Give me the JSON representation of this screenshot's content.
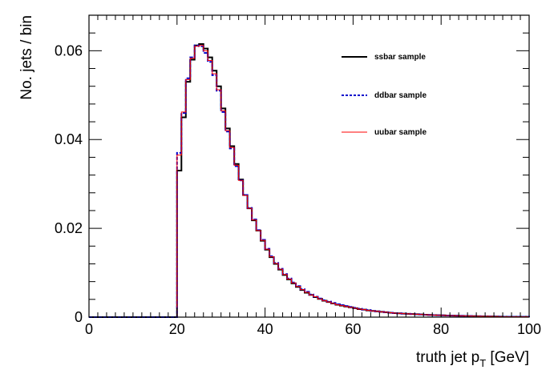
{
  "chart_data": {
    "type": "line",
    "title": "",
    "xlabel": "truth jet p",
    "xlabel_sub": "T",
    "xlabel_unit": " [GeV]",
    "ylabel": "No. jets / bin",
    "xlim": [
      0,
      100
    ],
    "ylim": [
      0,
      0.068
    ],
    "x_ticks": [
      0,
      20,
      40,
      60,
      80,
      100
    ],
    "x_tick_labels": [
      "0",
      "20",
      "40",
      "60",
      "80",
      "100"
    ],
    "y_ticks": [
      0,
      0.02,
      0.04,
      0.06
    ],
    "y_tick_labels": [
      "0",
      "0.02",
      "0.04",
      "0.06"
    ],
    "grid": false,
    "legend_position": "top-right",
    "bin_width": 1,
    "bin_edges_start": 20,
    "series": [
      {
        "name": "ssbar sample",
        "color": "#000000",
        "style": "solid",
        "values": [
          0.033,
          0.045,
          0.053,
          0.058,
          0.0612,
          0.0615,
          0.0605,
          0.0585,
          0.0555,
          0.052,
          0.047,
          0.0425,
          0.0385,
          0.0345,
          0.031,
          0.0275,
          0.0245,
          0.0218,
          0.0195,
          0.0172,
          0.0152,
          0.0135,
          0.012,
          0.0107,
          0.0095,
          0.0085,
          0.0076,
          0.0068,
          0.0061,
          0.0055,
          0.005,
          0.0045,
          0.0041,
          0.0037,
          0.0034,
          0.0031,
          0.0028,
          0.0026,
          0.0024,
          0.0022,
          0.002,
          0.0018,
          0.0017,
          0.0015,
          0.0014,
          0.0013,
          0.0012,
          0.0011,
          0.001,
          0.0009,
          0.00085,
          0.0008,
          0.00075,
          0.0007,
          0.00065,
          0.0006,
          0.00055,
          0.0005,
          0.00046,
          0.00043,
          0.0004,
          0.00037,
          0.00034,
          0.00031,
          0.00029,
          0.00027,
          0.00025,
          0.00023,
          0.00021,
          0.00019,
          0.00017,
          0.00015,
          0.00013,
          0.00011,
          0.0001,
          0.0001,
          0.0001,
          0.0001,
          0.0001,
          0.0001
        ]
      },
      {
        "name": "ddbar sample",
        "color": "#0000cc",
        "style": "dashed",
        "values": [
          0.037,
          0.046,
          0.0538,
          0.0585,
          0.0612,
          0.061,
          0.0595,
          0.0575,
          0.0545,
          0.051,
          0.0462,
          0.0418,
          0.038,
          0.034,
          0.0308,
          0.0275,
          0.0246,
          0.022,
          0.0196,
          0.0174,
          0.0154,
          0.0137,
          0.0122,
          0.0109,
          0.0097,
          0.0087,
          0.0078,
          0.007,
          0.0063,
          0.0057,
          0.0051,
          0.0046,
          0.0042,
          0.0038,
          0.0035,
          0.0032,
          0.0029,
          0.0027,
          0.0025,
          0.0023,
          0.0021,
          0.0019,
          0.0017,
          0.0016,
          0.0014,
          0.0013,
          0.0012,
          0.0011,
          0.001,
          0.0009,
          0.00085,
          0.0008,
          0.00075,
          0.0007,
          0.00065,
          0.0006,
          0.00055,
          0.0005,
          0.00046,
          0.00043,
          0.0004,
          0.00037,
          0.00034,
          0.00031,
          0.00029,
          0.00027,
          0.00025,
          0.00023,
          0.00021,
          0.00019,
          0.00017,
          0.00015,
          0.00013,
          0.00011,
          0.0001,
          0.0001,
          0.0001,
          0.0001,
          0.0001,
          0.0001
        ]
      },
      {
        "name": "uubar sample",
        "color": "#ff0000",
        "style": "solid",
        "values": [
          0.0365,
          0.0462,
          0.0535,
          0.0583,
          0.061,
          0.0612,
          0.06,
          0.0578,
          0.0548,
          0.0512,
          0.0465,
          0.042,
          0.0382,
          0.0342,
          0.0308,
          0.0274,
          0.0245,
          0.0219,
          0.0195,
          0.0173,
          0.0153,
          0.0136,
          0.0121,
          0.0108,
          0.0096,
          0.0086,
          0.0077,
          0.0069,
          0.0062,
          0.0056,
          0.005,
          0.0046,
          0.0041,
          0.0037,
          0.0034,
          0.0031,
          0.0028,
          0.0026,
          0.0024,
          0.0022,
          0.002,
          0.0018,
          0.0017,
          0.0015,
          0.0014,
          0.0013,
          0.0012,
          0.0011,
          0.001,
          0.0009,
          0.00085,
          0.0008,
          0.00075,
          0.0007,
          0.00065,
          0.0006,
          0.00055,
          0.0005,
          0.00046,
          0.00043,
          0.0004,
          0.00037,
          0.00034,
          0.00031,
          0.00029,
          0.00027,
          0.00025,
          0.00023,
          0.00021,
          0.00019,
          0.00017,
          0.00015,
          0.00013,
          0.00011,
          0.0001,
          0.0001,
          0.0001,
          0.0001,
          0.0001,
          0.0001
        ]
      }
    ]
  }
}
